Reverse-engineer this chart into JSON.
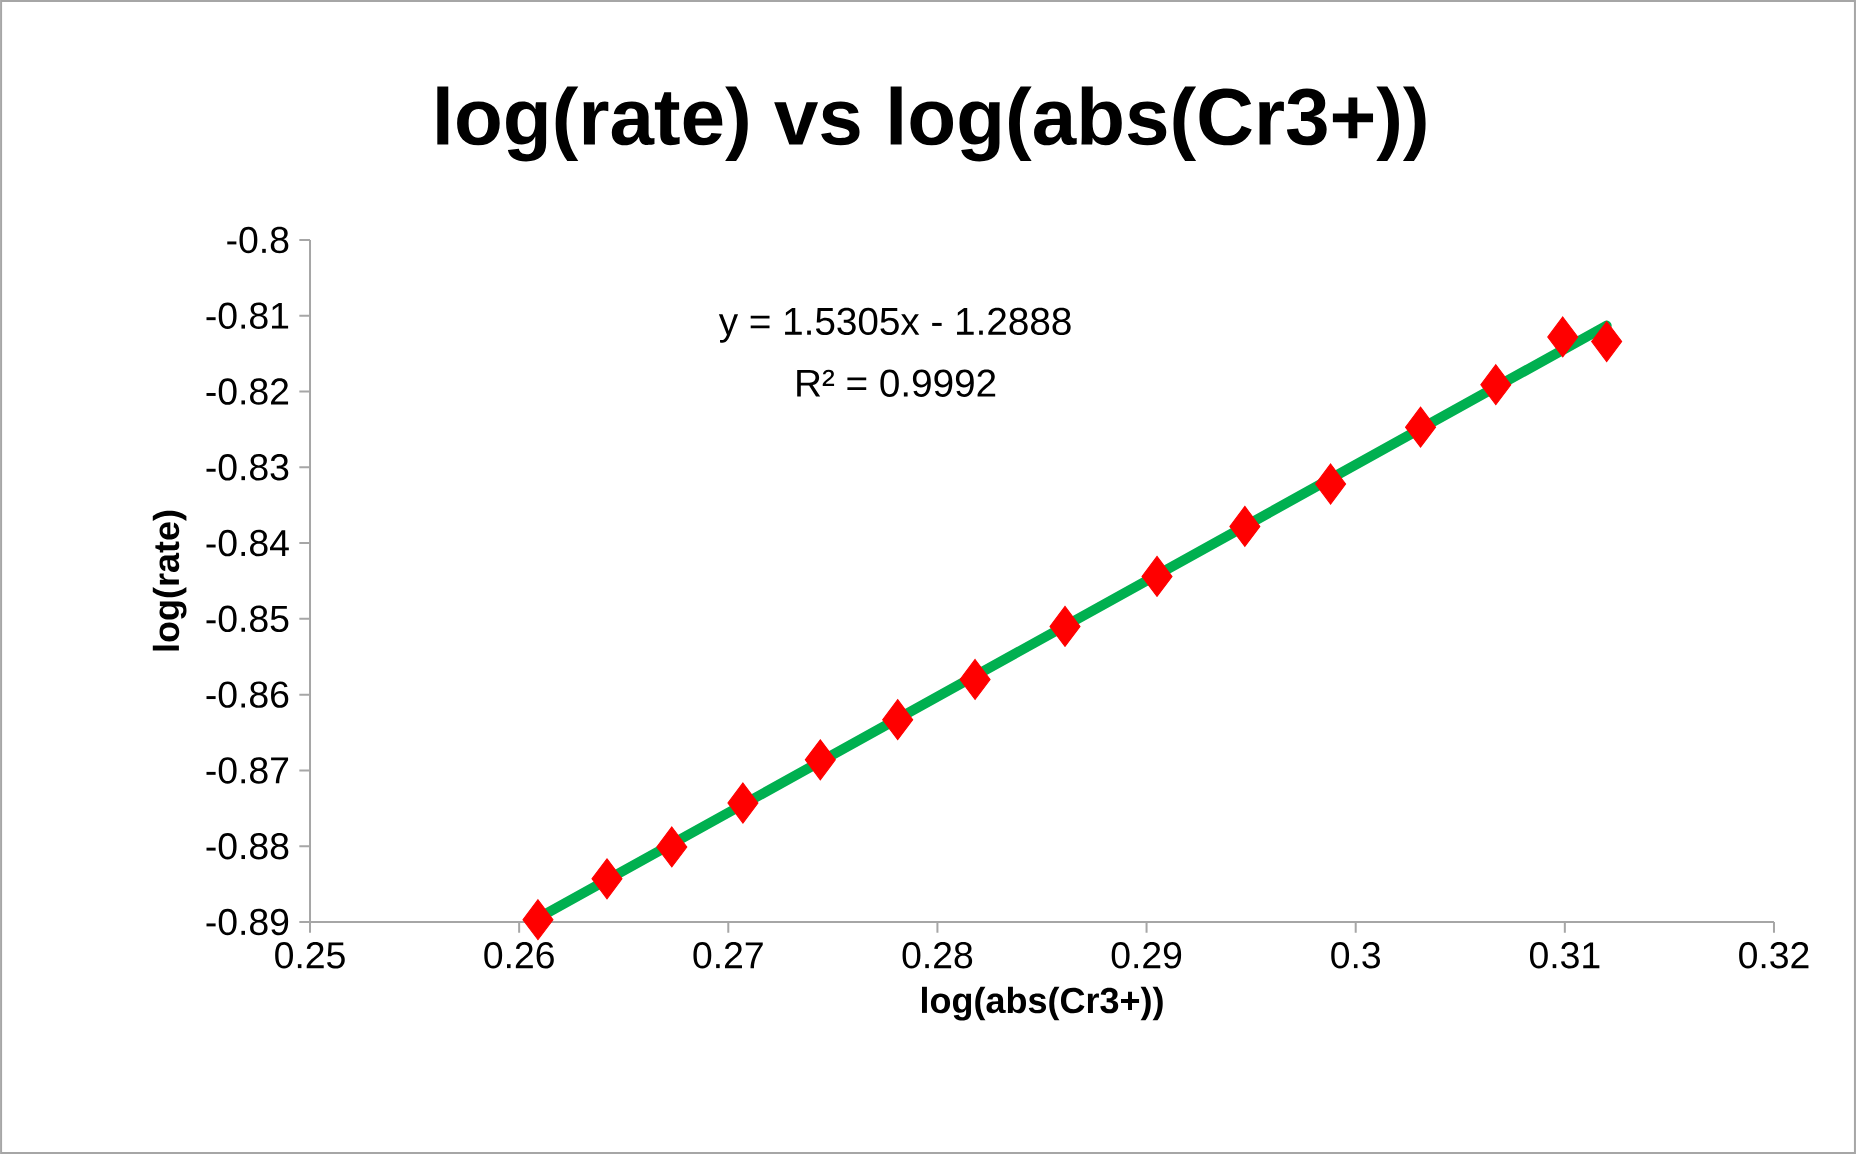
{
  "chart_data": {
    "type": "scatter",
    "title": "log(rate) vs log(abs(Cr3+))",
    "xlabel": "log(abs(Cr3+))",
    "ylabel": "log(rate)",
    "series": [
      {
        "color": "#ff0000",
        "marker": "diamond",
        "x": [
          0.2609,
          0.2642,
          0.2673,
          0.2707,
          0.2744,
          0.2781,
          0.2818,
          0.2861,
          0.2905,
          0.2947,
          0.2988,
          0.3031,
          0.3067,
          0.3099,
          0.312
        ],
        "values": [
          -0.8897,
          -0.8843,
          -0.8801,
          -0.8743,
          -0.8686,
          -0.8633,
          -0.858,
          -0.851,
          -0.8444,
          -0.8378,
          -0.8322,
          -0.8247,
          -0.8191,
          -0.8128,
          -0.8134
        ]
      },
      {
        "type": "line",
        "color": "#00b050",
        "marker": "none",
        "line_style": "solid",
        "x": [
          0.2609,
          0.312
        ],
        "values": [
          -0.8895,
          -0.8113
        ]
      }
    ],
    "annotations": [
      "y = 1.5305x - 1.2888",
      "R² = 0.9992"
    ],
    "xlim": [
      0.25,
      0.32
    ],
    "xticks": [
      0.25,
      0.26,
      0.27,
      0.28,
      0.29,
      0.3,
      0.31,
      0.32
    ],
    "ylim": [
      -0.89,
      -0.8
    ],
    "yticks": [
      -0.89,
      -0.88,
      -0.87,
      -0.86,
      -0.85,
      -0.84,
      -0.83,
      -0.82,
      -0.81,
      -0.8
    ],
    "grid": false
  }
}
